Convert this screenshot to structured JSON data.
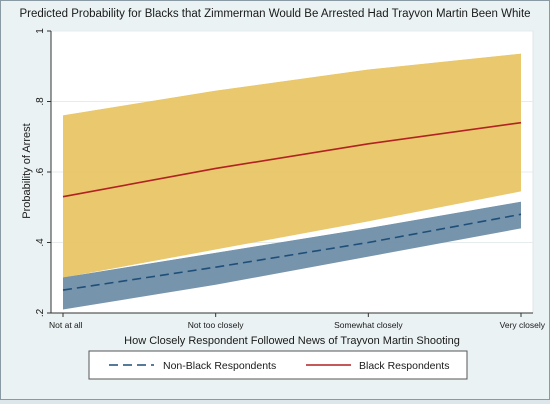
{
  "chart_data": {
    "type": "line",
    "title": "Predicted Probability for Blacks that Zimmerman Would Be Arrested Had Trayvon Martin Been White",
    "xlabel": "How Closely Respondent Followed News of Trayvon Martin Shooting",
    "ylabel": "Probability of Arrest",
    "categories": [
      "Not at all",
      "Not too closely",
      "Somewhat closely",
      "Very closely"
    ],
    "ylim": [
      0.2,
      1.0
    ],
    "yticks": [
      {
        "value": 0.2,
        "label": ".2"
      },
      {
        "value": 0.4,
        "label": ".4"
      },
      {
        "value": 0.6,
        "label": ".6"
      },
      {
        "value": 0.8,
        "label": ".8"
      },
      {
        "value": 1.0,
        "label": "1"
      }
    ],
    "grid": true,
    "legend_position": "bottom",
    "series": [
      {
        "name": "Non-Black Respondents",
        "style": "dashed",
        "line_color": "#1f4e79",
        "band_color": "#6f8fa8",
        "values": [
          0.265,
          0.33,
          0.4,
          0.48
        ],
        "lower": [
          0.21,
          0.28,
          0.36,
          0.44
        ],
        "upper": [
          0.3,
          0.37,
          0.44,
          0.515
        ]
      },
      {
        "name": "Black Respondents",
        "style": "solid",
        "line_color": "#b22222",
        "band_color": "#e8c566",
        "values": [
          0.53,
          0.61,
          0.68,
          0.74
        ],
        "lower": [
          0.3,
          0.38,
          0.46,
          0.545
        ],
        "upper": [
          0.76,
          0.83,
          0.89,
          0.935
        ]
      }
    ]
  }
}
